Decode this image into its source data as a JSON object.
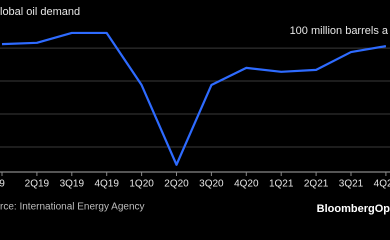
{
  "chart_data": {
    "type": "line",
    "title": "lobal oil demand",
    "source": "rce: International Energy Agency",
    "logo": "BloombergOp",
    "categories": [
      "9",
      "2Q19",
      "3Q19",
      "4Q19",
      "1Q20",
      "2Q20",
      "3Q20",
      "4Q20",
      "1Q21",
      "2Q21",
      "3Q21",
      "4Q21"
    ],
    "series": [
      {
        "name": "Global oil demand",
        "color": "#2e6bff",
        "values": [
          100.6,
          100.8,
          102.3,
          102.3,
          94.4,
          82.3,
          94.4,
          97.0,
          96.4,
          96.7,
          99.4,
          100.3
        ]
      }
    ],
    "ylim": [
      81.2,
      107.3
    ],
    "yticks": [
      {
        "value": 100,
        "label": "100 million barrels a"
      },
      {
        "value": 95,
        "label": null
      },
      {
        "value": 90,
        "label": null
      },
      {
        "value": 85,
        "label": null
      }
    ],
    "grid": true
  }
}
